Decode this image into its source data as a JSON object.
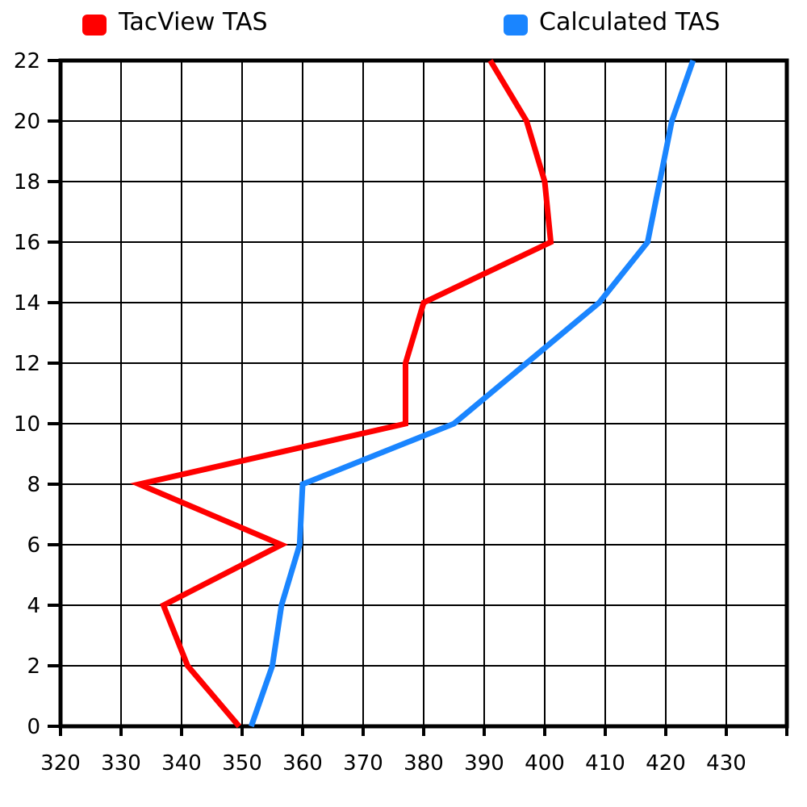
{
  "chart_data": {
    "type": "line",
    "title": "",
    "xlabel": "",
    "ylabel": "",
    "xlim": [
      320,
      440
    ],
    "ylim": [
      0,
      22
    ],
    "xticks": [
      320,
      330,
      340,
      350,
      360,
      370,
      380,
      390,
      400,
      410,
      420,
      430
    ],
    "yticks": [
      0,
      2,
      4,
      6,
      8,
      10,
      12,
      14,
      16,
      18,
      20,
      22
    ],
    "grid": true,
    "legend": {
      "placement": "top"
    },
    "series": [
      {
        "name": "TacView TAS",
        "color": "#ff0000",
        "points": [
          {
            "x": 349.5,
            "y": 0
          },
          {
            "x": 341,
            "y": 2
          },
          {
            "x": 337,
            "y": 4
          },
          {
            "x": 356.5,
            "y": 6
          },
          {
            "x": 333,
            "y": 8
          },
          {
            "x": 377,
            "y": 10
          },
          {
            "x": 377,
            "y": 12
          },
          {
            "x": 380,
            "y": 14
          },
          {
            "x": 401,
            "y": 16
          },
          {
            "x": 400,
            "y": 18
          },
          {
            "x": 397,
            "y": 20
          },
          {
            "x": 391,
            "y": 22
          }
        ]
      },
      {
        "name": "Calculated TAS",
        "color": "#1a85ff",
        "points": [
          {
            "x": 351.5,
            "y": 0
          },
          {
            "x": 355,
            "y": 2
          },
          {
            "x": 356.5,
            "y": 4
          },
          {
            "x": 359.5,
            "y": 6
          },
          {
            "x": 360,
            "y": 8
          },
          {
            "x": 385,
            "y": 10
          },
          {
            "x": 397,
            "y": 12
          },
          {
            "x": 409,
            "y": 14
          },
          {
            "x": 417,
            "y": 16
          },
          {
            "x": 419,
            "y": 18
          },
          {
            "x": 421,
            "y": 20
          },
          {
            "x": 424.5,
            "y": 22
          }
        ]
      }
    ]
  }
}
